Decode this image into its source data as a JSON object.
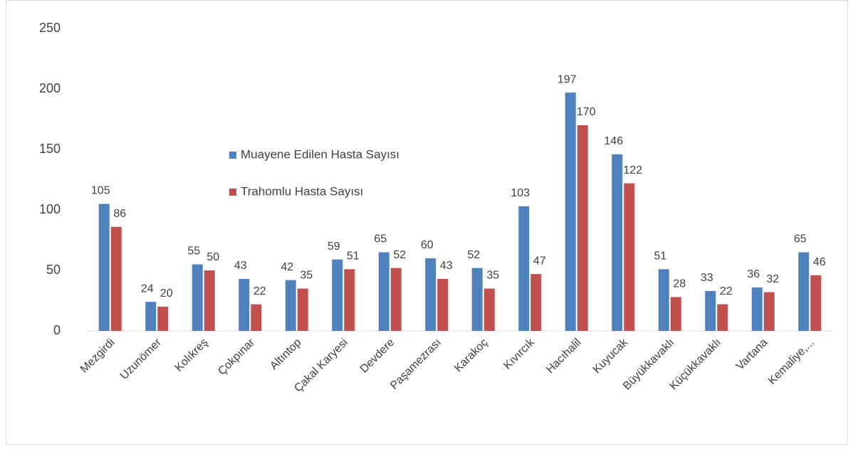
{
  "chart_data": {
    "type": "bar",
    "categories": [
      "Mezgirdi",
      "Uzunömer",
      "Kolıkreş",
      "Çokpınar",
      "Altıntop",
      "Çakal Karyesi",
      "Devdere",
      "Paşamezrası",
      "Karakoç",
      "Kıvırcık",
      "Hacıhalil",
      "Kuyucak",
      "Büyükkavaklı",
      "Küçükkavaklı",
      "Vartana",
      "Kemaliye,..."
    ],
    "series": [
      {
        "name": "Muayene Edilen Hasta Sayısı",
        "color": "#4f81bd",
        "values": [
          105,
          24,
          55,
          43,
          42,
          59,
          65,
          60,
          52,
          103,
          197,
          146,
          51,
          33,
          36,
          65
        ]
      },
      {
        "name": "Trahomlu Hasta Sayısı",
        "color": "#c0504d",
        "values": [
          86,
          20,
          50,
          22,
          35,
          51,
          52,
          43,
          35,
          47,
          170,
          122,
          28,
          22,
          32,
          46
        ]
      }
    ],
    "ylim": [
      0,
      250
    ],
    "yticks": [
      0,
      50,
      100,
      150,
      200,
      250
    ],
    "grid": false
  }
}
